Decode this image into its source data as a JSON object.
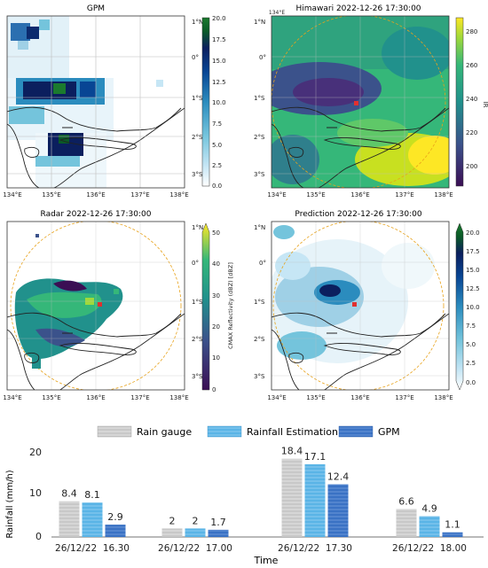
{
  "maps": {
    "lon_ticks": [
      "134°E",
      "135°E",
      "136°E",
      "137°E",
      "138°E"
    ],
    "lat_ticks": [
      "1°N",
      "0°",
      "1°S",
      "2°S",
      "3°S"
    ],
    "panels": [
      {
        "title": "GPM",
        "cbar_ticks": [
          "20.0",
          "17.5",
          "15.0",
          "12.5",
          "10.0",
          "7.5",
          "5.0",
          "2.5",
          "0.0"
        ],
        "cbar_label": ""
      },
      {
        "title": "Himawari 2022-12-26 17:30:00",
        "cbar_ticks": [
          "280",
          "260",
          "240",
          "220",
          "200"
        ],
        "cbar_label": "IR"
      },
      {
        "title": "Radar 2022-12-26 17:30:00",
        "cbar_ticks": [
          "50",
          "40",
          "30",
          "20",
          "10",
          "0"
        ],
        "cbar_label": "CMAX Reflectivity (dBZ) [dBZ]"
      },
      {
        "title": "Prediction 2022-12-26 17:30:00",
        "cbar_ticks": [
          "20.0",
          "17.5",
          "15.0",
          "12.5",
          "10.0",
          "7.5",
          "5.0",
          "2.5",
          "0.0"
        ],
        "cbar_label": ""
      }
    ],
    "colors": {
      "precip_scale": [
        "#ffffff",
        "#c6e6f5",
        "#74c4dc",
        "#2b8cbe",
        "#084594",
        "#0b1f5e",
        "#0a5a28",
        "#1b7a2e"
      ],
      "ir_scale": [
        "#3b0f54",
        "#3b528b",
        "#21918c",
        "#35b779",
        "#9fd93b",
        "#fde725"
      ],
      "radar_scale": [
        "#3b0f54",
        "#3b528b",
        "#21918c",
        "#35b779",
        "#fde725"
      ],
      "coast": "#222222",
      "radar_ring": "#e8a21a",
      "site": "#e03030"
    }
  },
  "chart_data": {
    "type": "bar",
    "categories": [
      "26/12/22  16.30",
      "26/12/22  17.00",
      "26/12/22  17.30",
      "26/12/22  18.00"
    ],
    "series": [
      {
        "name": "Rain gauge",
        "values": [
          8.4,
          2,
          18.4,
          6.6
        ],
        "labels": [
          "8.4",
          "2",
          "18.4",
          "6.6"
        ],
        "color": "#c8c8c8"
      },
      {
        "name": "Rainfall Estimation",
        "values": [
          8.1,
          2,
          17.1,
          4.9
        ],
        "labels": [
          "8.1",
          "2",
          "17.1",
          "4.9"
        ],
        "color": "#5ab4e6"
      },
      {
        "name": "GPM",
        "values": [
          2.9,
          1.7,
          12.4,
          1.1
        ],
        "labels": [
          "2.9",
          "1.7",
          "12.4",
          "1.1"
        ],
        "color": "#3a72c4"
      }
    ],
    "ylabel": "Rainfall (mm/h)",
    "xlabel": "Time",
    "ylim": [
      0,
      20
    ],
    "yticks": [
      "20",
      "10",
      "0"
    ],
    "grid": false,
    "legend": "top"
  }
}
